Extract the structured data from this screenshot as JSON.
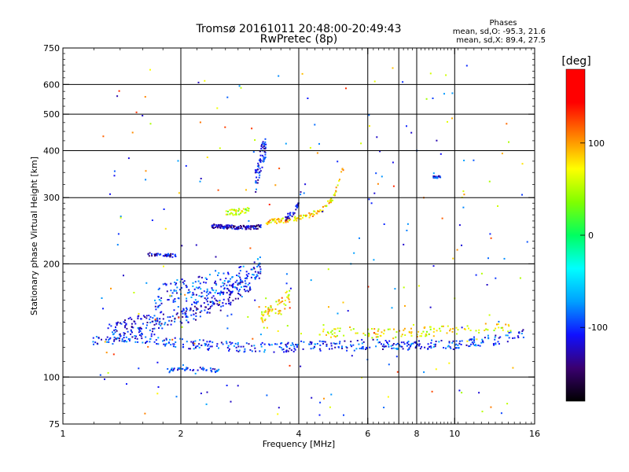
{
  "chart_data": {
    "type": "scatter",
    "title": "Tromsø 20161011 20:48:00-20:49:43",
    "subtitle": "RwPretec (8p)",
    "phase_info": {
      "header": "Phases",
      "line_o": "mean, sd,O: -95.3, 21.6",
      "line_x": "mean, sd,X:  89.4, 27.5"
    },
    "xlabel": "Frequency [MHz]",
    "ylabel": "Stationary phase Virtual Height [km]",
    "x_scale": "log",
    "y_scale": "log",
    "xlim": [
      1,
      16
    ],
    "ylim": [
      75,
      750
    ],
    "x_ticks": [
      1,
      2,
      4,
      6,
      8,
      10,
      16
    ],
    "x_tick_labels": [
      "1",
      "2",
      "4",
      "6",
      "8",
      "10",
      "16"
    ],
    "x_grid": [
      2,
      4,
      6,
      7.2,
      8,
      10
    ],
    "y_ticks": [
      75,
      100,
      200,
      300,
      400,
      500,
      600,
      750
    ],
    "y_tick_labels": [
      "75",
      "100",
      "200",
      "300",
      "400",
      "500",
      "600",
      "750"
    ],
    "y_grid": [
      100,
      200,
      300,
      400,
      500,
      600
    ],
    "grid": true,
    "colorbar": {
      "label": "[deg]",
      "range": [
        -180,
        180
      ],
      "ticks": [
        100,
        0,
        -100
      ],
      "tick_labels": [
        "100",
        "0",
        "-100"
      ],
      "colors": [
        "#000000",
        "#3a0070",
        "#1010ff",
        "#00a0ff",
        "#00ffff",
        "#00ff60",
        "#80ff00",
        "#ffff00",
        "#ff8000",
        "#ff0000",
        "#ff0000"
      ]
    },
    "traces": [
      {
        "f": [
          1.18,
          1.28,
          1.38,
          1.5,
          1.6,
          1.72,
          1.85,
          2.0,
          2.15,
          2.3,
          2.5,
          2.7,
          2.9,
          3.1,
          3.3,
          3.5,
          3.8,
          4.1,
          4.5,
          5.0,
          5.5,
          6.0,
          6.5,
          7.0,
          7.5,
          8.0,
          8.5,
          9.0,
          9.5,
          10.0,
          10.5,
          11.0,
          12.0,
          13.0,
          14.0,
          15.0
        ],
        "h": [
          124,
          125,
          127,
          128,
          127,
          126,
          124,
          123,
          122,
          122,
          121,
          121,
          120,
          120,
          120,
          120,
          120,
          121,
          121,
          121,
          121,
          122,
          122,
          121,
          121,
          121,
          122,
          122,
          121,
          122,
          123,
          124,
          125,
          126,
          128,
          130
        ],
        "phase": -100,
        "spread": 0.03,
        "count": 420
      },
      {
        "f": [
          1.3,
          1.4,
          1.55,
          1.7,
          1.85,
          2.0,
          2.2,
          2.4,
          2.6,
          2.8,
          3.0,
          3.2
        ],
        "h": [
          130,
          134,
          137,
          140,
          143,
          146,
          150,
          155,
          162,
          170,
          180,
          195
        ],
        "phase": -110,
        "spread": 0.06,
        "count": 280
      },
      {
        "f": [
          1.7,
          1.8,
          1.9,
          2.0,
          2.2,
          2.4,
          2.6,
          2.8,
          3.0,
          3.2
        ],
        "h": [
          160,
          165,
          168,
          170,
          172,
          175,
          178,
          182,
          188,
          200
        ],
        "phase": -95,
        "spread": 0.07,
        "count": 180
      },
      {
        "f": [
          1.65,
          1.75,
          1.85,
          1.95
        ],
        "h": [
          212,
          212,
          211,
          210
        ],
        "phase": -120,
        "spread": 0.01,
        "count": 40
      },
      {
        "f": [
          2.4,
          2.6,
          2.8,
          3.0,
          3.2
        ],
        "h": [
          252,
          251,
          250,
          250,
          251
        ],
        "phase": -125,
        "spread": 0.012,
        "count": 120
      },
      {
        "f": [
          2.6,
          2.8,
          3.0
        ],
        "h": [
          272,
          275,
          280
        ],
        "phase": 55,
        "spread": 0.02,
        "count": 40
      },
      {
        "f": [
          3.1,
          3.2,
          3.3
        ],
        "h": [
          330,
          380,
          420
        ],
        "phase": -110,
        "spread": 0.08,
        "count": 70
      },
      {
        "f": [
          3.3,
          3.5,
          3.7,
          3.9,
          4.1,
          4.3,
          4.6,
          4.9,
          5.2
        ],
        "h": [
          258,
          260,
          261,
          263,
          266,
          270,
          280,
          300,
          360
        ],
        "phase": 80,
        "spread": 0.015,
        "count": 110
      },
      {
        "f": [
          3.7,
          3.9,
          4.0,
          4.05
        ],
        "h": [
          265,
          275,
          290,
          310
        ],
        "phase": -115,
        "spread": 0.02,
        "count": 30
      },
      {
        "f": [
          3.2,
          3.4,
          3.6,
          3.8
        ],
        "h": [
          145,
          150,
          155,
          165
        ],
        "phase": 75,
        "spread": 0.05,
        "count": 60
      },
      {
        "f": [
          1.85,
          2.0,
          2.15,
          2.5
        ],
        "h": [
          104,
          105,
          105,
          104
        ],
        "phase": -100,
        "spread": 0.012,
        "count": 45
      },
      {
        "f": [
          4.5,
          5.5,
          6.5,
          7.5,
          8.5,
          9.5,
          10.5,
          12.0,
          14.0
        ],
        "h": [
          130,
          132,
          130,
          131,
          132,
          133,
          134,
          135,
          136
        ],
        "phase": 70,
        "spread": 0.03,
        "count": 130
      },
      {
        "f": [
          8.8,
          9.0,
          9.2
        ],
        "h": [
          340,
          340,
          341
        ],
        "phase": -105,
        "spread": 0.006,
        "count": 20
      }
    ]
  }
}
